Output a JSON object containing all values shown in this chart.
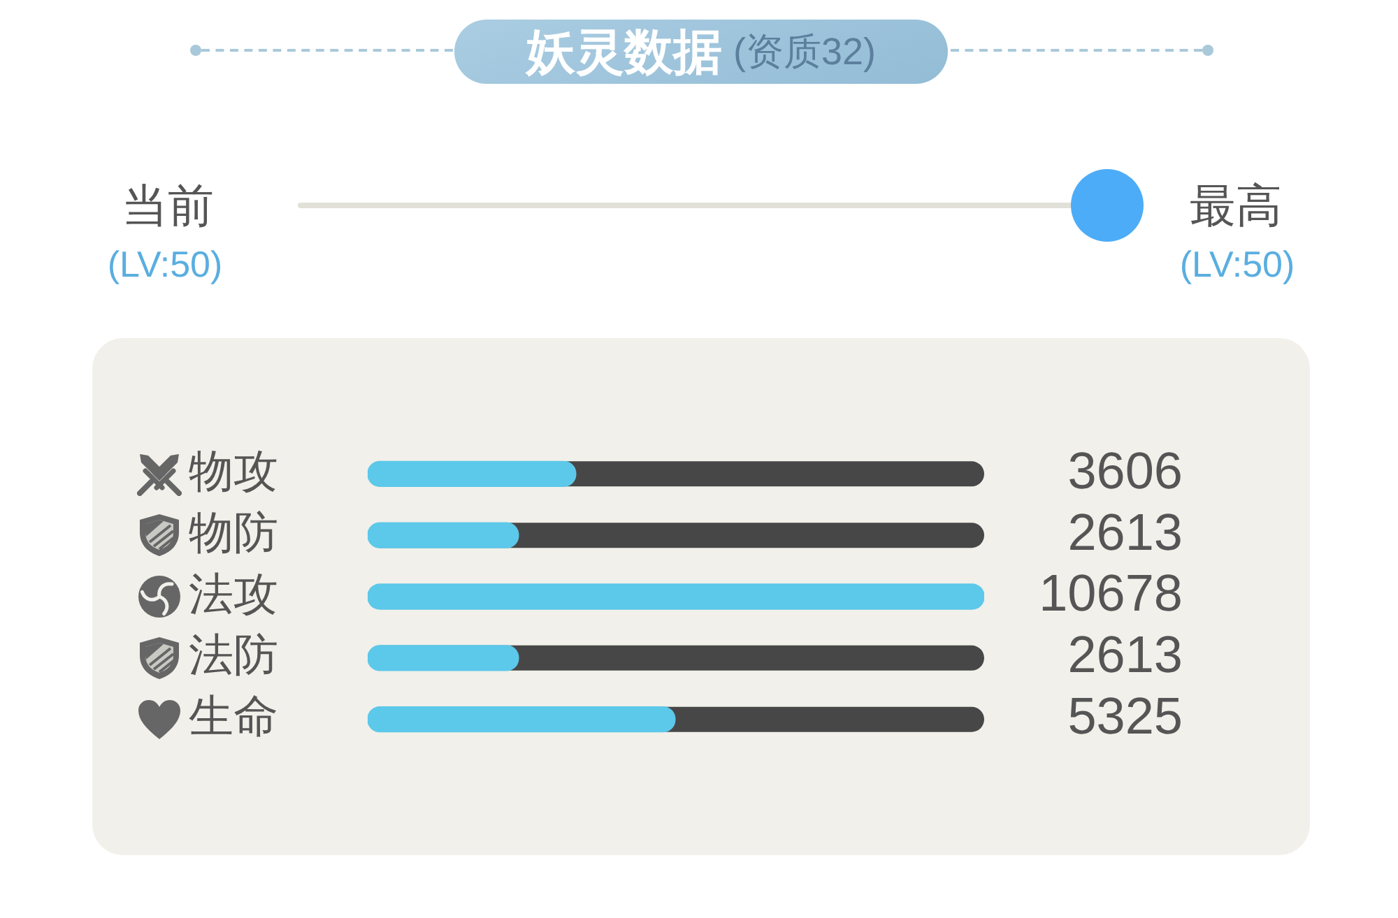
{
  "chart_data": {
    "type": "bar",
    "title": "妖灵数据",
    "subtitle": "(资质32)",
    "annotations": [
      "当前",
      "(LV:50)",
      "最高",
      "(LV:50)"
    ],
    "categories": [
      "物攻",
      "物防",
      "法攻",
      "法防",
      "生命"
    ],
    "orientation": "horizontal",
    "data_labels": true,
    "values": [
      3606,
      2613,
      10678,
      2613,
      5325
    ],
    "color": "#5cc8ea"
  }
}
